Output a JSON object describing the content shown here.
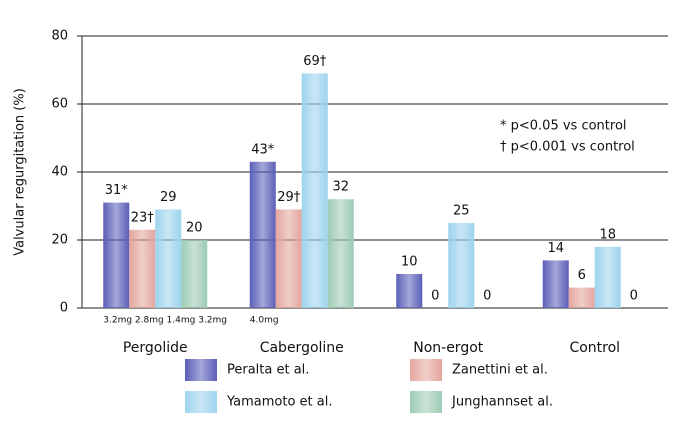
{
  "chart_data": {
    "type": "bar",
    "y_label": "Valvular regurgitation (%)",
    "categories": [
      "Pergolide",
      "Cabergoline",
      "Non-ergot",
      "Control"
    ],
    "series": [
      {
        "name": "Peralta et al.",
        "color": "#5a5fb8",
        "values": [
          31,
          43,
          10,
          14
        ],
        "value_labels": [
          "31*",
          "43*",
          "10",
          "14"
        ]
      },
      {
        "name": "Zanettini et al.",
        "color": "#e3a59d",
        "values": [
          23,
          29,
          0,
          6
        ],
        "value_labels": [
          "23†",
          "29†",
          "0",
          "6"
        ]
      },
      {
        "name": "Yamamoto et al.",
        "color": "#9dd3ee",
        "values": [
          29,
          69,
          25,
          18
        ],
        "value_labels": [
          "29",
          "69†",
          "25",
          "18"
        ]
      },
      {
        "name": "Junghannset al.",
        "color": "#9ccbb4",
        "values": [
          20,
          32,
          0,
          0
        ],
        "value_labels": [
          "20",
          "32",
          "0",
          "0"
        ]
      }
    ],
    "dose_labels": [
      "3.2mg 2.8mg 1.4mg 3.2mg",
      "4.0mg"
    ],
    "annotations": [
      "*  p<0.05 vs control",
      "†  p<0.001 vs control"
    ],
    "ylim": [
      0,
      80
    ],
    "yticks": [
      0,
      20,
      40,
      60,
      80
    ],
    "grid": true
  }
}
